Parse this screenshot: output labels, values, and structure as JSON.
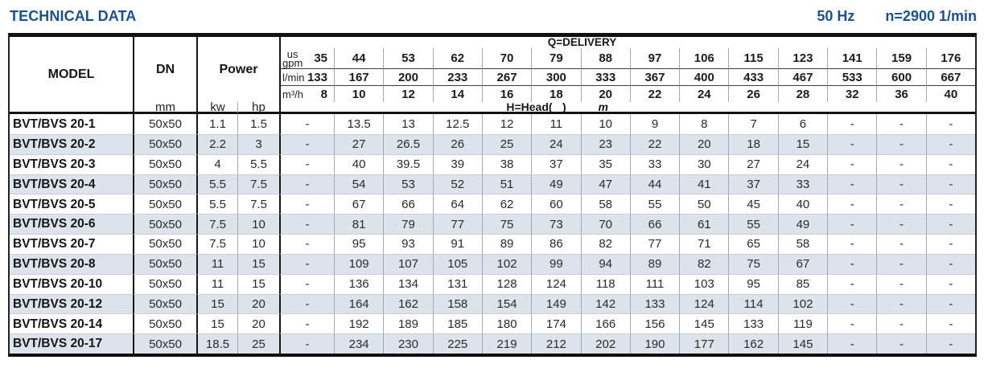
{
  "page": {
    "title": "TECHNICAL DATA",
    "frequency": "50 Hz",
    "speed": "n=2900 1/min"
  },
  "table": {
    "headers": {
      "model": "MODEL",
      "dn": "DN",
      "dn_unit": "mm",
      "power": "Power",
      "power_unit_kw": "kw",
      "power_unit_hp": "hp"
    },
    "q_header": {
      "title": "Q=DELIVERY",
      "head_label": {
        "pre": "H=Head(",
        "italic": "m",
        "post": ")"
      },
      "rows": [
        {
          "id": "us-gpm",
          "label_lines": [
            "us",
            "gpm"
          ],
          "values": [
            "35",
            "44",
            "53",
            "62",
            "70",
            "79",
            "88",
            "97",
            "106",
            "115",
            "123",
            "141",
            "159",
            "176"
          ]
        },
        {
          "id": "l-min",
          "label_lines": [
            "l/min"
          ],
          "values": [
            "133",
            "167",
            "200",
            "233",
            "267",
            "300",
            "333",
            "367",
            "400",
            "433",
            "467",
            "533",
            "600",
            "667"
          ]
        },
        {
          "id": "m3-h",
          "label_lines": [
            "m³/h"
          ],
          "values": [
            "8",
            "10",
            "12",
            "14",
            "16",
            "18",
            "20",
            "22",
            "24",
            "26",
            "28",
            "32",
            "36",
            "40"
          ]
        }
      ]
    },
    "rows": [
      {
        "model": "BVT/BVS 20-1",
        "dn": "50x50",
        "kw": "1.1",
        "hp": "1.5",
        "heads": [
          "-",
          "13.5",
          "13",
          "12.5",
          "12",
          "11",
          "10",
          "9",
          "8",
          "7",
          "6",
          "-",
          "-",
          "-"
        ]
      },
      {
        "model": "BVT/BVS 20-2",
        "dn": "50x50",
        "kw": "2.2",
        "hp": "3",
        "heads": [
          "-",
          "27",
          "26.5",
          "26",
          "25",
          "24",
          "23",
          "22",
          "20",
          "18",
          "15",
          "-",
          "-",
          "-"
        ]
      },
      {
        "model": "BVT/BVS 20-3",
        "dn": "50x50",
        "kw": "4",
        "hp": "5.5",
        "heads": [
          "-",
          "40",
          "39.5",
          "39",
          "38",
          "37",
          "35",
          "33",
          "30",
          "27",
          "24",
          "-",
          "-",
          "-"
        ]
      },
      {
        "model": "BVT/BVS 20-4",
        "dn": "50x50",
        "kw": "5.5",
        "hp": "7.5",
        "heads": [
          "-",
          "54",
          "53",
          "52",
          "51",
          "49",
          "47",
          "44",
          "41",
          "37",
          "33",
          "-",
          "-",
          "-"
        ]
      },
      {
        "model": "BVT/BVS 20-5",
        "dn": "50x50",
        "kw": "5.5",
        "hp": "7.5",
        "heads": [
          "-",
          "67",
          "66",
          "64",
          "62",
          "60",
          "58",
          "55",
          "50",
          "45",
          "40",
          "-",
          "-",
          "-"
        ]
      },
      {
        "model": "BVT/BVS 20-6",
        "dn": "50x50",
        "kw": "7.5",
        "hp": "10",
        "heads": [
          "-",
          "81",
          "79",
          "77",
          "75",
          "73",
          "70",
          "66",
          "61",
          "55",
          "49",
          "-",
          "-",
          "-"
        ]
      },
      {
        "model": "BVT/BVS 20-7",
        "dn": "50x50",
        "kw": "7.5",
        "hp": "10",
        "heads": [
          "-",
          "95",
          "93",
          "91",
          "89",
          "86",
          "82",
          "77",
          "71",
          "65",
          "58",
          "-",
          "-",
          "-"
        ]
      },
      {
        "model": "BVT/BVS 20-8",
        "dn": "50x50",
        "kw": "11",
        "hp": "15",
        "heads": [
          "-",
          "109",
          "107",
          "105",
          "102",
          "99",
          "94",
          "89",
          "82",
          "75",
          "67",
          "-",
          "-",
          "-"
        ]
      },
      {
        "model": "BVT/BVS 20-10",
        "dn": "50x50",
        "kw": "11",
        "hp": "15",
        "heads": [
          "-",
          "136",
          "134",
          "131",
          "128",
          "124",
          "118",
          "111",
          "103",
          "95",
          "85",
          "-",
          "-",
          "-"
        ]
      },
      {
        "model": "BVT/BVS 20-12",
        "dn": "50x50",
        "kw": "15",
        "hp": "20",
        "heads": [
          "-",
          "164",
          "162",
          "158",
          "154",
          "149",
          "142",
          "133",
          "124",
          "114",
          "102",
          "-",
          "-",
          "-"
        ]
      },
      {
        "model": "BVT/BVS 20-14",
        "dn": "50x50",
        "kw": "15",
        "hp": "20",
        "heads": [
          "-",
          "192",
          "189",
          "185",
          "180",
          "174",
          "166",
          "156",
          "145",
          "133",
          "119",
          "-",
          "-",
          "-"
        ]
      },
      {
        "model": "BVT/BVS 20-17",
        "dn": "50x50",
        "kw": "18.5",
        "hp": "25",
        "heads": [
          "-",
          "234",
          "230",
          "225",
          "219",
          "212",
          "202",
          "190",
          "177",
          "162",
          "145",
          "-",
          "-",
          "-"
        ]
      }
    ]
  }
}
